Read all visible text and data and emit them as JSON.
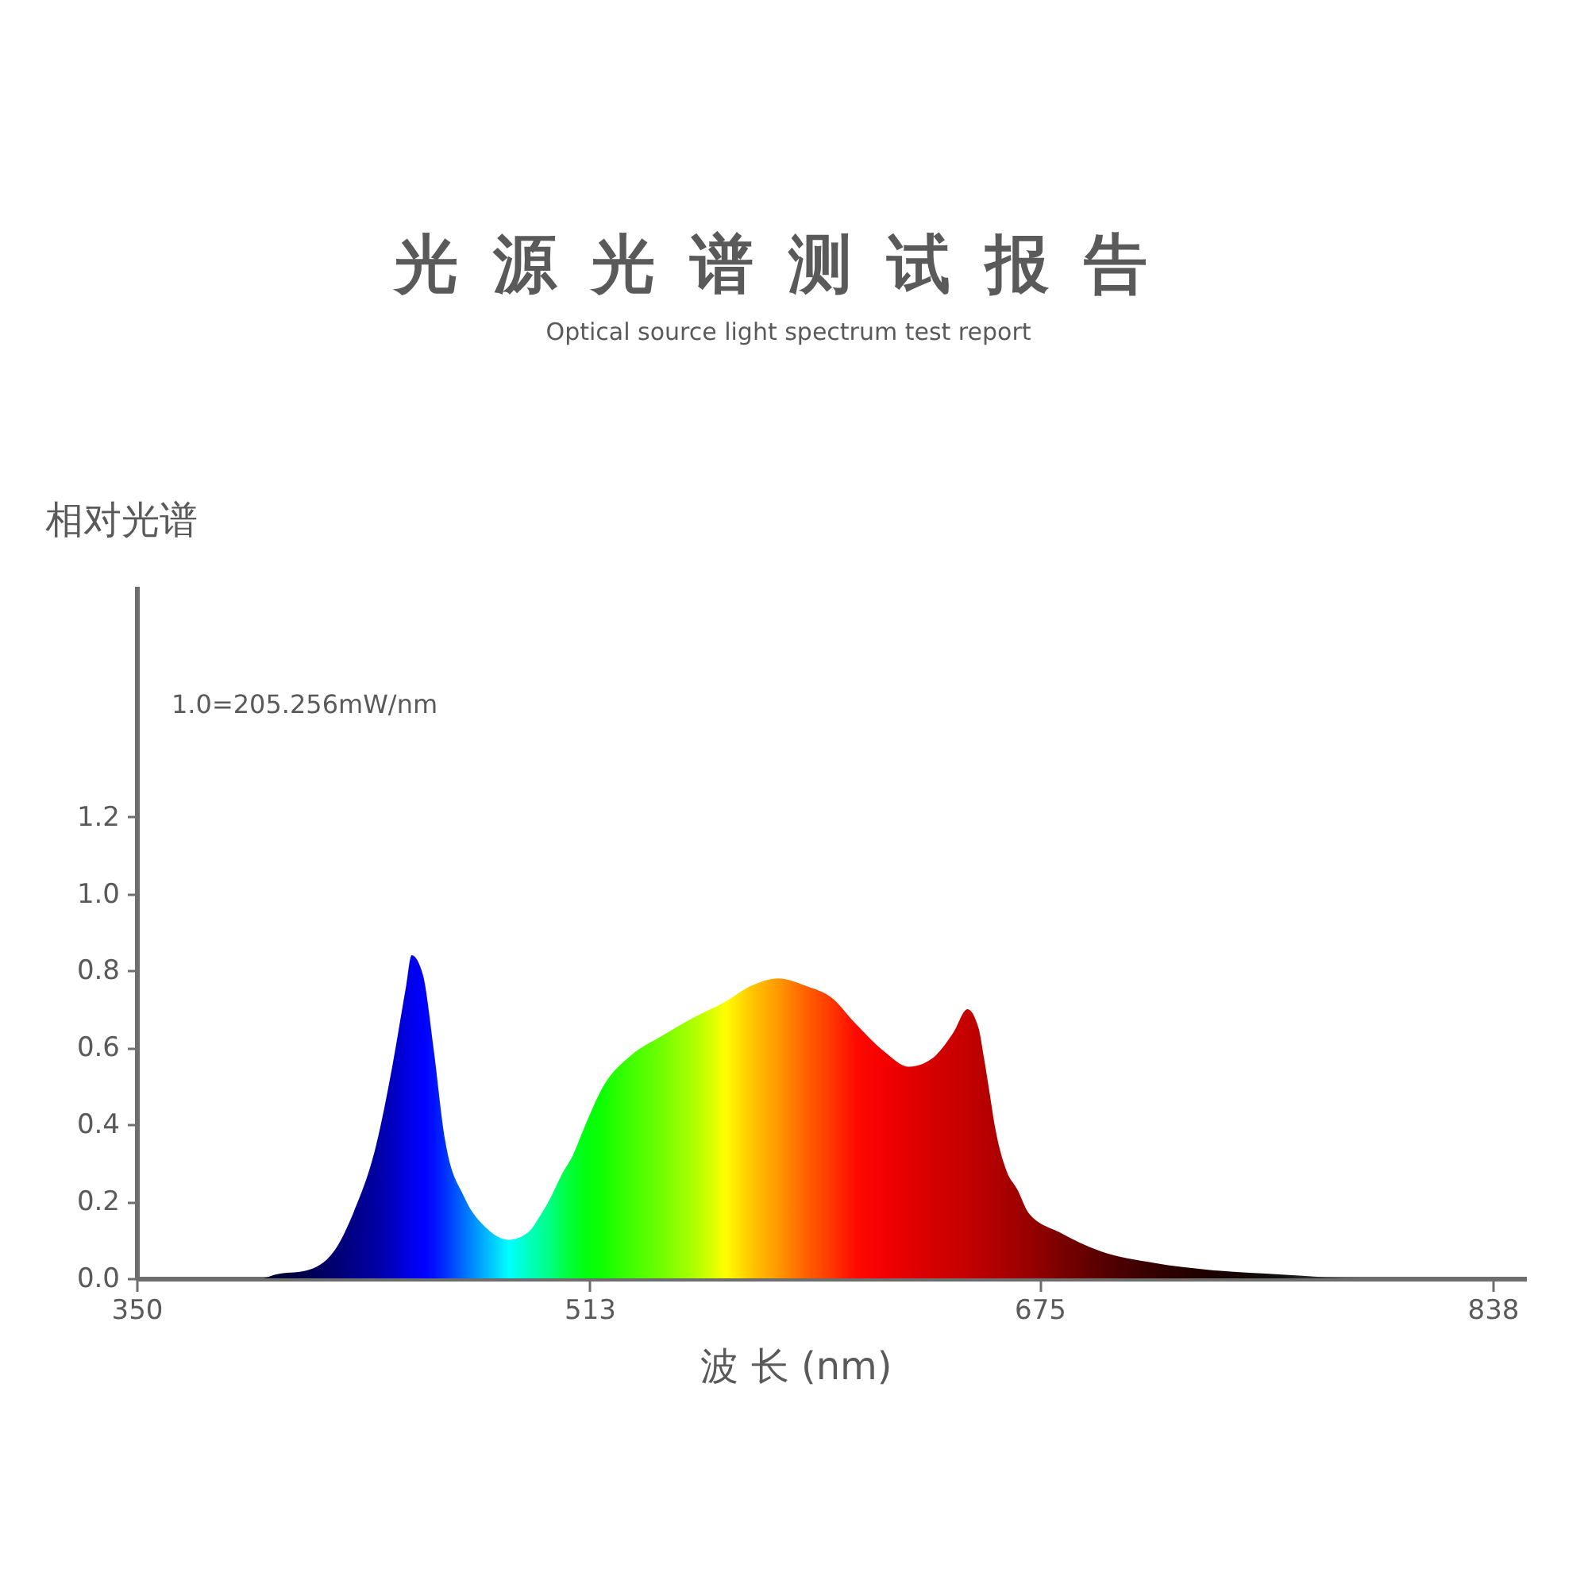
{
  "chart_data": {
    "type": "area",
    "title": "光源光谱测试报告",
    "subtitle": "Optical source light spectrum test report",
    "xlabel": "波 长 (nm)",
    "ylabel": "相对光谱",
    "annotations": [
      "1.0=205.256mW/nm"
    ],
    "xlim": [
      350,
      850
    ],
    "xticks": [
      350,
      513,
      675,
      838
    ],
    "ylim": [
      0,
      1.8
    ],
    "yticks": [
      {
        "value": 0,
        "label": "0.0"
      },
      0.2,
      0.4,
      0.6,
      0.8,
      {
        "value": 1,
        "label": "1.0"
      },
      1.2
    ],
    "series": [
      {
        "x": [
          350,
          395,
          400,
          411,
          421,
          428,
          436,
          442,
          447,
          449,
          453,
          457,
          461,
          468,
          476,
          484,
          491,
          495,
          499,
          503,
          507,
          511,
          518,
          528,
          539,
          551,
          562,
          571,
          581,
          591,
          600,
          609,
          619,
          628,
          636,
          644,
          649,
          653,
          655,
          657,
          659,
          663,
          667,
          671,
          682,
          697,
          716,
          739,
          762,
          792,
          838
        ],
        "values": [
          0,
          0,
          0.01,
          0.02,
          0.07,
          0.17,
          0.34,
          0.55,
          0.76,
          0.84,
          0.79,
          0.59,
          0.36,
          0.21,
          0.13,
          0.1,
          0.12,
          0.16,
          0.21,
          0.27,
          0.32,
          0.39,
          0.5,
          0.58,
          0.63,
          0.68,
          0.72,
          0.76,
          0.78,
          0.76,
          0.73,
          0.66,
          0.59,
          0.55,
          0.57,
          0.64,
          0.7,
          0.65,
          0.57,
          0.48,
          0.39,
          0.28,
          0.23,
          0.17,
          0.12,
          0.07,
          0.04,
          0.02,
          0.01,
          0,
          0
        ],
        "colors": [
          "#000033",
          "#000033",
          "#000033",
          "#000050",
          "#000070",
          "#000088",
          "#0000a0",
          "#0000c0",
          "#0000e0",
          "#0000ea",
          "#0000ff",
          "#0010ff",
          "#0030ff",
          "#0070ff",
          "#00b8ff",
          "#00ffff",
          "#00ffc0",
          "#00ffa0",
          "#00ff80",
          "#00ff50",
          "#00ff30",
          "#00ff10",
          "#10ff00",
          "#40ff00",
          "#70ff00",
          "#b0ff00",
          "#ffff00",
          "#ffc800",
          "#ff9800",
          "#ff6000",
          "#ff3800",
          "#ff0800",
          "#f40000",
          "#e40000",
          "#d60000",
          "#cc0000",
          "#c40000",
          "#bc0000",
          "#b80000",
          "#b40000",
          "#b00000",
          "#a80000",
          "#a00000",
          "#980000",
          "#7c0000",
          "#580000",
          "#340000",
          "#180000",
          "#101010",
          "#606060",
          "#c0c0c0"
        ]
      }
    ]
  }
}
